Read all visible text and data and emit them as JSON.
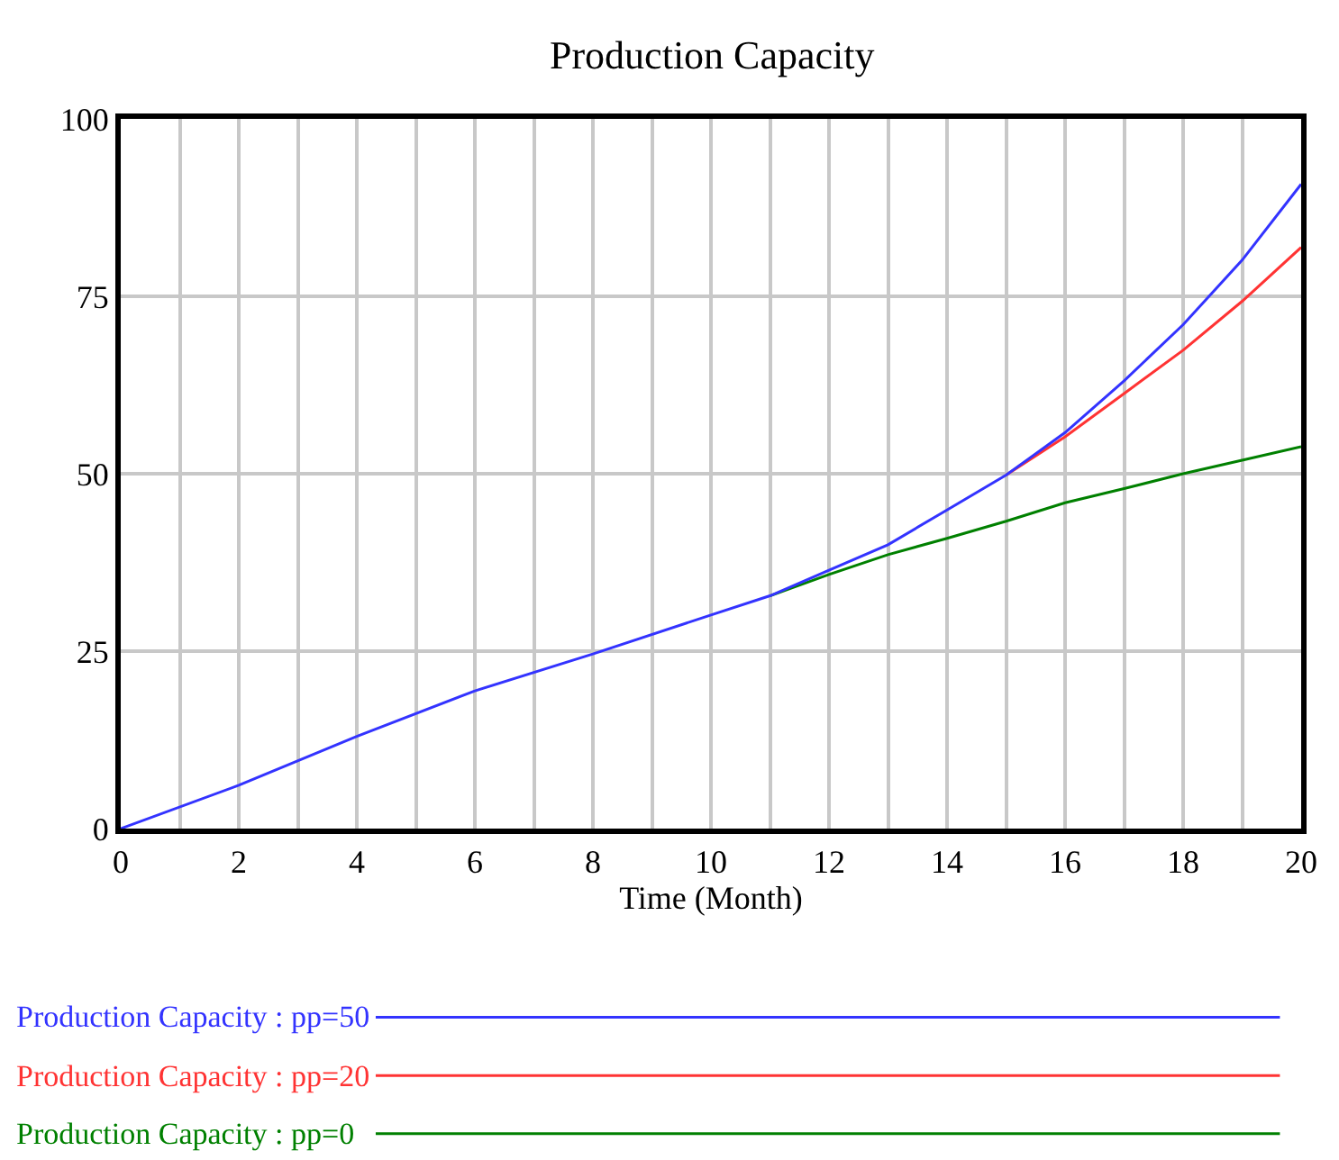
{
  "chart_data": {
    "type": "line",
    "title": "Production Capacity",
    "xlabel": "Time (Month)",
    "x": [
      0,
      2,
      4,
      6,
      8,
      10,
      11,
      12,
      13,
      14,
      15,
      16,
      17,
      18,
      19,
      20
    ],
    "series": [
      {
        "name": "Production Capacity : pp=50",
        "color": "#3333ff",
        "values": [
          0,
          6.1,
          13,
          19.4,
          24.6,
          30.1,
          32.8,
          36.4,
          40,
          44.9,
          49.8,
          55.8,
          63.1,
          71,
          80.1,
          90.8
        ]
      },
      {
        "name": "Production Capacity : pp=20",
        "color": "#ff3333",
        "values": [
          null,
          null,
          null,
          null,
          null,
          null,
          null,
          null,
          null,
          null,
          49.8,
          55.2,
          61.3,
          67.4,
          74.3,
          81.9
        ]
      },
      {
        "name": "Production Capacity : pp=0",
        "color": "#008000",
        "values": [
          null,
          null,
          null,
          null,
          null,
          null,
          32.8,
          35.8,
          38.6,
          40.9,
          43.3,
          45.9,
          47.9,
          50,
          51.9,
          53.8
        ]
      }
    ],
    "xlim": [
      0,
      20
    ],
    "xticks": [
      0,
      2,
      4,
      6,
      8,
      10,
      12,
      14,
      16,
      18,
      20
    ],
    "ylim": [
      0,
      100
    ],
    "yticks": [
      0,
      25,
      50,
      75,
      100
    ],
    "grid": true,
    "legend": "bottom",
    "marker": "none",
    "line_style": "solid"
  }
}
